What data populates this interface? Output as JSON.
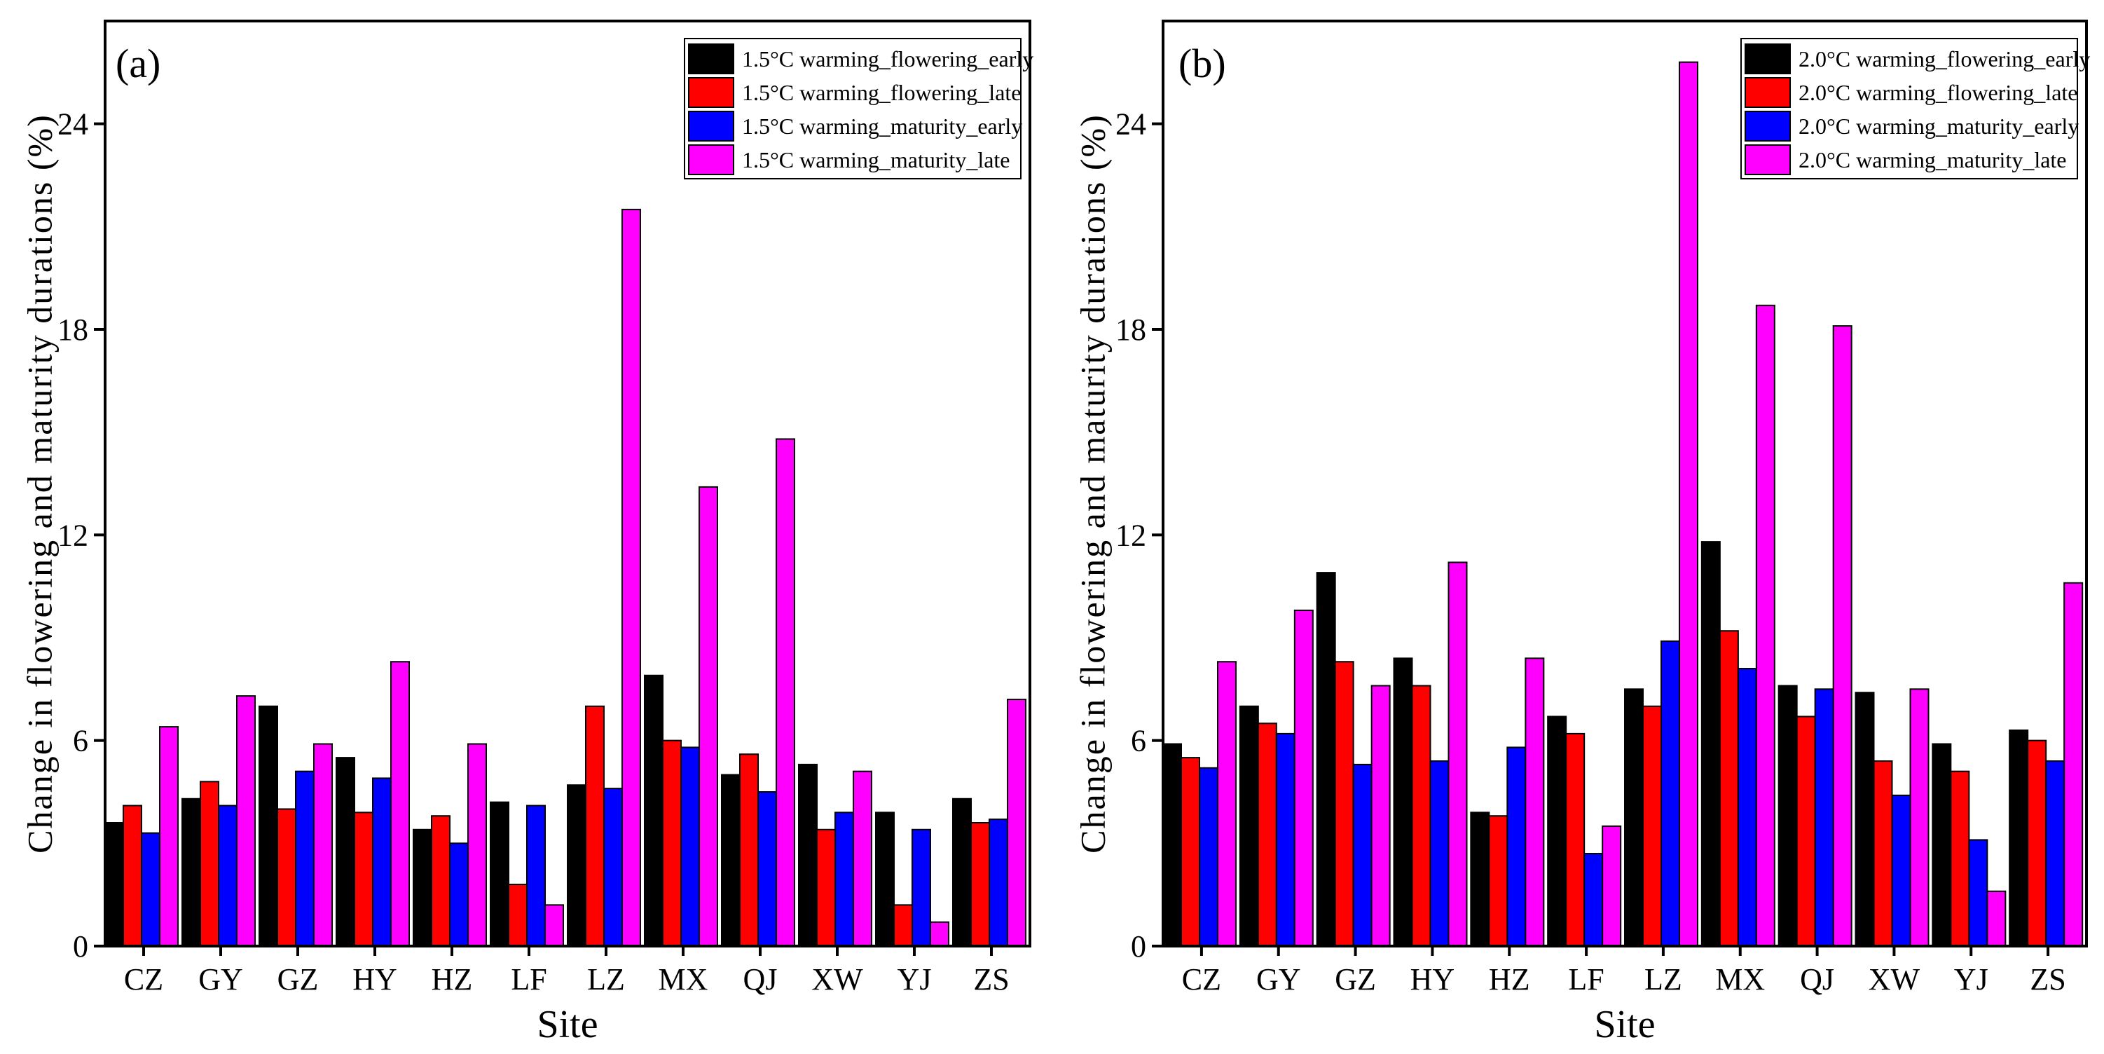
{
  "chart_data": [
    {
      "type": "bar",
      "panel_label": "(a)",
      "xlabel": "Site",
      "ylabel": "Change in flowering and maturity durations (%)",
      "ylim": [
        0,
        27
      ],
      "yticks": [
        0,
        6,
        12,
        18,
        24
      ],
      "categories": [
        "CZ",
        "GY",
        "GZ",
        "HY",
        "HZ",
        "LF",
        "LZ",
        "MX",
        "QJ",
        "XW",
        "YJ",
        "ZS"
      ],
      "legend_position": "top-right",
      "series": [
        {
          "name": "1.5°C warming_flowering_early",
          "color": "#000000",
          "values": [
            3.6,
            4.3,
            7.0,
            5.5,
            3.4,
            4.2,
            4.7,
            7.9,
            5.0,
            5.3,
            3.9,
            4.3
          ]
        },
        {
          "name": "1.5°C warming_flowering_late",
          "color": "#ff0000",
          "values": [
            4.1,
            4.8,
            4.0,
            3.9,
            3.8,
            1.8,
            7.0,
            6.0,
            5.6,
            3.4,
            1.2,
            3.6
          ]
        },
        {
          "name": "1.5°C warming_maturity_early",
          "color": "#0000ff",
          "values": [
            3.3,
            4.1,
            5.1,
            4.9,
            3.0,
            4.1,
            4.6,
            5.8,
            4.5,
            3.9,
            3.4,
            3.7
          ]
        },
        {
          "name": "1.5°C warming_maturity_late",
          "color": "#ff00ff",
          "values": [
            6.4,
            7.3,
            5.9,
            8.3,
            5.9,
            1.2,
            21.5,
            13.4,
            14.8,
            5.1,
            0.7,
            7.2
          ]
        }
      ]
    },
    {
      "type": "bar",
      "panel_label": "(b)",
      "xlabel": "Site",
      "ylabel": "Change in flowering and maturity durations (%)",
      "ylim": [
        0,
        27
      ],
      "yticks": [
        0,
        6,
        12,
        18,
        24
      ],
      "categories": [
        "CZ",
        "GY",
        "GZ",
        "HY",
        "HZ",
        "LF",
        "LZ",
        "MX",
        "QJ",
        "XW",
        "YJ",
        "ZS"
      ],
      "legend_position": "top-right",
      "series": [
        {
          "name": "2.0°C warming_flowering_early",
          "color": "#000000",
          "values": [
            5.9,
            7.0,
            10.9,
            8.4,
            3.9,
            6.7,
            7.5,
            11.8,
            7.6,
            7.4,
            5.9,
            6.3
          ]
        },
        {
          "name": "2.0°C warming_flowering_late",
          "color": "#ff0000",
          "values": [
            5.5,
            6.5,
            8.3,
            7.6,
            3.8,
            6.2,
            7.0,
            9.2,
            6.7,
            5.4,
            5.1,
            6.0
          ]
        },
        {
          "name": "2.0°C warming_maturity_early",
          "color": "#0000ff",
          "values": [
            5.2,
            6.2,
            5.3,
            5.4,
            5.8,
            2.7,
            8.9,
            8.1,
            7.5,
            4.4,
            3.1,
            5.4
          ]
        },
        {
          "name": "2.0°C warming_maturity_late",
          "color": "#ff00ff",
          "values": [
            8.3,
            9.8,
            7.6,
            11.2,
            8.4,
            3.5,
            25.8,
            18.7,
            18.1,
            7.5,
            1.6,
            10.6
          ]
        }
      ]
    }
  ]
}
